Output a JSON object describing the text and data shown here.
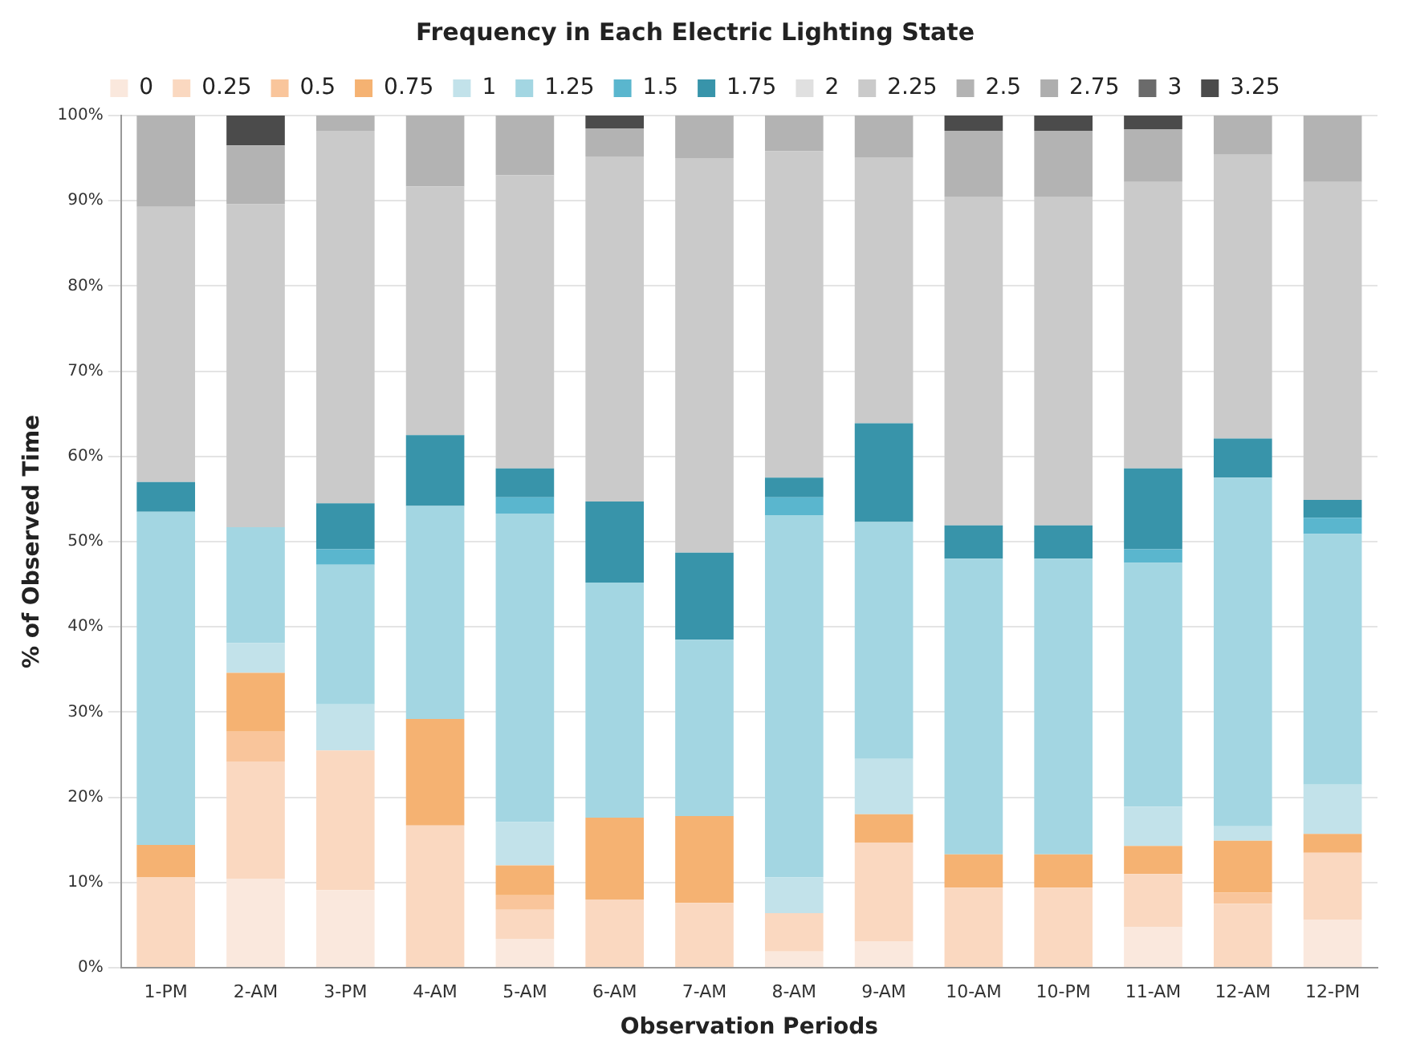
{
  "chart_data": {
    "type": "bar",
    "stacked": true,
    "title": "Frequency in Each Electric Lighting State",
    "xlabel": "Observation Periods",
    "ylabel": "% of Observed Time",
    "categories": [
      "1-PM",
      "2-AM",
      "3-PM",
      "4-AM",
      "5-AM",
      "6-AM",
      "7-AM",
      "8-AM",
      "9-AM",
      "10-AM",
      "10-PM",
      "11-AM",
      "12-AM",
      "12-PM"
    ],
    "ylim": [
      0,
      100
    ],
    "yticks": [
      {
        "value": 0,
        "label": "0%"
      },
      {
        "value": 10,
        "label": "10%"
      },
      {
        "value": 20,
        "label": "20%"
      },
      {
        "value": 30,
        "label": "30%"
      },
      {
        "value": 40,
        "label": "40%"
      },
      {
        "value": 50,
        "label": "50%"
      },
      {
        "value": 60,
        "label": "60%"
      },
      {
        "value": 70,
        "label": "70%"
      },
      {
        "value": 80,
        "label": "80%"
      },
      {
        "value": 90,
        "label": "90%"
      },
      {
        "value": 100,
        "label": "100%"
      }
    ],
    "grid": "y",
    "legend": "top",
    "series": [
      {
        "name": "0",
        "color": "#fae8dd",
        "values": [
          0,
          10.4,
          9.1,
          0,
          3.4,
          0,
          0,
          1.9,
          3.1,
          0,
          0,
          4.8,
          0,
          5.6
        ]
      },
      {
        "name": "0.25",
        "color": "#fad8c0",
        "values": [
          10.6,
          13.8,
          16.4,
          16.7,
          3.4,
          8.0,
          7.6,
          4.5,
          11.6,
          9.4,
          9.4,
          6.2,
          7.5,
          7.9
        ]
      },
      {
        "name": "0.5",
        "color": "#f9c59b",
        "values": [
          0,
          3.5,
          0,
          0,
          1.7,
          0,
          0,
          0,
          0,
          0,
          0,
          0,
          1.3,
          0
        ]
      },
      {
        "name": "0.75",
        "color": "#f5b272",
        "values": [
          3.8,
          6.9,
          0,
          12.5,
          3.5,
          9.6,
          10.2,
          0,
          3.3,
          3.9,
          3.9,
          3.3,
          6.1,
          2.2
        ]
      },
      {
        "name": "1",
        "color": "#c2e2ea",
        "values": [
          0,
          3.5,
          5.4,
          0,
          5.1,
          0,
          0,
          4.2,
          6.5,
          0,
          0,
          4.6,
          1.7,
          5.8
        ]
      },
      {
        "name": "1.25",
        "color": "#a3d6e2",
        "values": [
          39.1,
          13.6,
          16.4,
          25,
          36.2,
          27.6,
          20.7,
          42.5,
          27.8,
          34.7,
          34.7,
          28.6,
          40.9,
          29.4
        ]
      },
      {
        "name": "1.5",
        "color": "#5ab6ce",
        "values": [
          0,
          0,
          1.8,
          0,
          1.9,
          0,
          0,
          2.1,
          0,
          0,
          0,
          1.6,
          0,
          1.9
        ]
      },
      {
        "name": "1.75",
        "color": "#3894aa",
        "values": [
          3.5,
          0,
          5.4,
          8.3,
          3.4,
          9.5,
          10.2,
          2.3,
          11.6,
          3.9,
          3.9,
          9.5,
          4.6,
          2.1
        ]
      },
      {
        "name": "2",
        "color": "#e0e0e0",
        "values": [
          0,
          0,
          0,
          0,
          0,
          0,
          0,
          0,
          0,
          0,
          0,
          0,
          0,
          0
        ]
      },
      {
        "name": "2.25",
        "color": "#cacaca",
        "values": [
          32.3,
          37.9,
          43.7,
          29.2,
          34.4,
          40.5,
          46.3,
          38.3,
          31.2,
          38.6,
          38.6,
          33.6,
          33.3,
          37.3
        ]
      },
      {
        "name": "2.5",
        "color": "#b3b3b3",
        "values": [
          10.7,
          6.9,
          1.8,
          8.3,
          7.0,
          3.3,
          5.0,
          4.2,
          4.9,
          7.7,
          7.7,
          6.2,
          4.6,
          7.8
        ]
      },
      {
        "name": "2.75",
        "color": "#aeaeae",
        "values": [
          0,
          0,
          0,
          0,
          0,
          0,
          0,
          0,
          0,
          0,
          0,
          0,
          0,
          0
        ]
      },
      {
        "name": "3",
        "color": "#6b6b6b",
        "values": [
          0,
          0,
          0,
          0,
          0,
          0,
          0,
          0,
          0,
          0,
          0,
          0,
          0,
          0
        ]
      },
      {
        "name": "3.25",
        "color": "#4b4b4b",
        "values": [
          0,
          3.5,
          0,
          0,
          0,
          1.5,
          0,
          0,
          0,
          1.8,
          1.8,
          1.6,
          0,
          0
        ]
      }
    ]
  }
}
